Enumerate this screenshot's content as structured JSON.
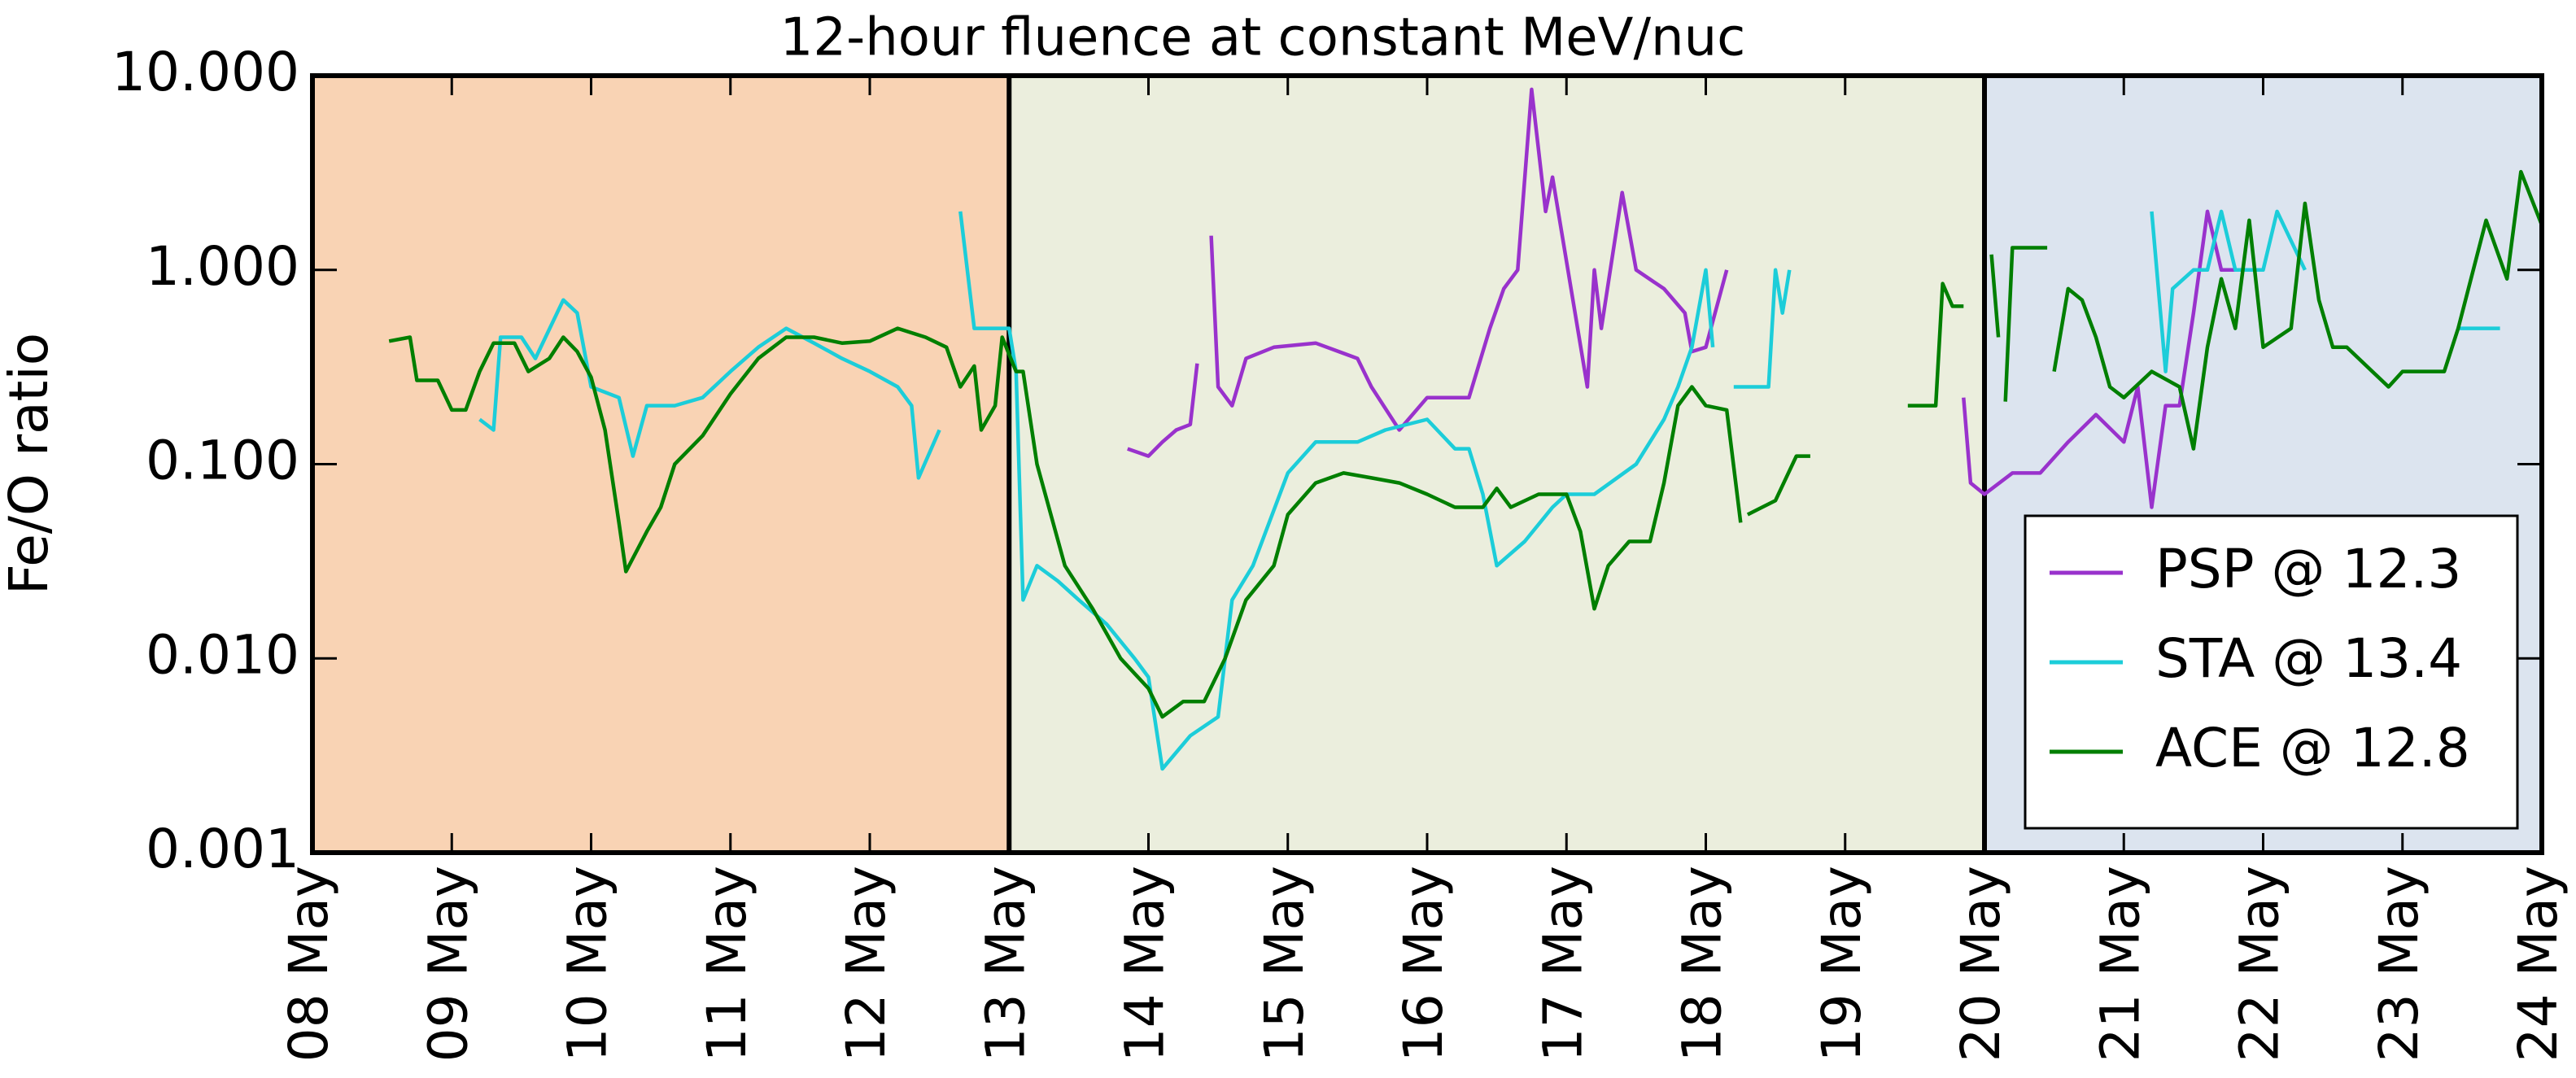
{
  "chart_data": {
    "type": "line",
    "title": "12-hour fluence at constant MeV/nuc",
    "y_label": "Fe/O ratio",
    "ylog": true,
    "ylim": [
      0.001,
      10
    ],
    "yticks": [
      {
        "value": 0.001,
        "label": "0.001"
      },
      {
        "value": 0.01,
        "label": "0.010"
      },
      {
        "value": 0.1,
        "label": "0.100"
      },
      {
        "value": 1,
        "label": "1.000"
      },
      {
        "value": 10,
        "label": "10.000"
      }
    ],
    "xlim": [
      8,
      24
    ],
    "xticks": [
      {
        "value": 8,
        "label": "08 May"
      },
      {
        "value": 9,
        "label": "09 May"
      },
      {
        "value": 10,
        "label": "10 May"
      },
      {
        "value": 11,
        "label": "11 May"
      },
      {
        "value": 12,
        "label": "12 May"
      },
      {
        "value": 13,
        "label": "13 May"
      },
      {
        "value": 14,
        "label": "14 May"
      },
      {
        "value": 15,
        "label": "15 May"
      },
      {
        "value": 16,
        "label": "16 May"
      },
      {
        "value": 17,
        "label": "17 May"
      },
      {
        "value": 18,
        "label": "18 May"
      },
      {
        "value": 19,
        "label": "19 May"
      },
      {
        "value": 20,
        "label": "20 May"
      },
      {
        "value": 21,
        "label": "21 May"
      },
      {
        "value": 22,
        "label": "22 May"
      },
      {
        "value": 23,
        "label": "23 May"
      },
      {
        "value": 24,
        "label": "24 May"
      }
    ],
    "regions": [
      {
        "start": 8,
        "end": 13,
        "color": "#f9d3b4"
      },
      {
        "start": 13,
        "end": 20,
        "color": "#ebeedd"
      },
      {
        "start": 20,
        "end": 24,
        "color": "#dce4ef"
      }
    ],
    "legend": "lower right",
    "series": [
      {
        "name": "PSP @ 12.3",
        "color": "#9932cc",
        "x": [
          13.85,
          14.0,
          14.1,
          14.2,
          14.3,
          14.35,
          14.4,
          14.45,
          14.5,
          14.6,
          14.7,
          14.9,
          15.2,
          15.5,
          15.6,
          15.8,
          16.0,
          16.3,
          16.45,
          16.55,
          16.65,
          16.75,
          16.85,
          16.9,
          17.15,
          17.2,
          17.25,
          17.4,
          17.5,
          17.7,
          17.85,
          17.9,
          18.0,
          18.15,
          19.0,
          19.85,
          19.9,
          20.0,
          20.2,
          20.4,
          20.6,
          20.8,
          21.0,
          21.1,
          21.2,
          21.3,
          21.4,
          21.5,
          21.6,
          21.7,
          21.8,
          22.0
        ],
        "values": [
          0.12,
          0.11,
          0.13,
          0.15,
          0.16,
          0.33,
          null,
          1.5,
          0.25,
          0.2,
          0.35,
          0.4,
          0.42,
          0.35,
          0.25,
          0.15,
          0.22,
          0.22,
          0.5,
          0.8,
          1.0,
          8.5,
          2.0,
          3.0,
          0.25,
          1.0,
          0.5,
          2.5,
          1.0,
          0.8,
          0.6,
          0.38,
          0.4,
          1.0,
          null,
          0.22,
          0.08,
          0.07,
          0.09,
          0.09,
          0.13,
          0.18,
          0.13,
          0.25,
          0.06,
          0.2,
          0.2,
          0.6,
          2.0,
          1.0,
          1.0,
          1.0
        ]
      },
      {
        "name": "STA @ 13.4",
        "color": "#1ccdd9",
        "x": [
          9.2,
          9.3,
          9.35,
          9.5,
          9.6,
          9.8,
          9.9,
          10.0,
          10.2,
          10.3,
          10.4,
          10.6,
          10.8,
          11.0,
          11.2,
          11.4,
          11.6,
          11.8,
          12.0,
          12.2,
          12.3,
          12.35,
          12.5,
          12.6,
          12.65,
          12.75,
          13.0,
          13.05,
          13.1,
          13.2,
          13.35,
          13.5,
          13.7,
          13.9,
          14.0,
          14.1,
          14.3,
          14.5,
          14.6,
          14.75,
          15.0,
          15.2,
          15.5,
          15.7,
          16.0,
          16.2,
          16.3,
          16.4,
          16.5,
          16.7,
          16.9,
          17.0,
          17.2,
          17.5,
          17.7,
          17.8,
          17.9,
          18.0,
          18.05,
          18.1,
          18.2,
          18.45,
          18.5,
          18.55,
          18.6,
          19.5,
          21.2,
          21.3,
          21.35,
          21.5,
          21.6,
          21.7,
          21.8,
          22.0,
          22.1,
          22.3,
          23.0,
          23.4,
          23.7
        ],
        "values": [
          0.17,
          0.15,
          0.45,
          0.45,
          0.35,
          0.7,
          0.6,
          0.25,
          0.22,
          0.11,
          0.2,
          0.2,
          0.22,
          0.3,
          0.4,
          0.5,
          0.42,
          0.35,
          0.3,
          0.25,
          0.2,
          0.085,
          0.15,
          null,
          2.0,
          0.5,
          0.5,
          0.3,
          0.02,
          0.03,
          0.025,
          0.02,
          0.015,
          0.01,
          0.008,
          0.0027,
          0.004,
          0.005,
          0.02,
          0.03,
          0.09,
          0.13,
          0.13,
          0.15,
          0.17,
          0.12,
          0.12,
          0.07,
          0.03,
          0.04,
          0.06,
          0.07,
          0.07,
          0.1,
          0.17,
          0.25,
          0.4,
          1.0,
          0.4,
          null,
          0.25,
          0.25,
          1.0,
          0.6,
          1.0,
          null,
          2.0,
          0.3,
          0.8,
          1.0,
          1.0,
          2.0,
          1.0,
          1.0,
          2.0,
          1.0,
          null,
          0.5,
          0.5
        ]
      },
      {
        "name": "ACE @ 12.8",
        "color": "#007f00",
        "x": [
          8.55,
          8.7,
          8.75,
          8.9,
          9.0,
          9.1,
          9.2,
          9.3,
          9.45,
          9.55,
          9.7,
          9.8,
          9.9,
          10.0,
          10.1,
          10.2,
          10.25,
          10.4,
          10.5,
          10.6,
          10.8,
          11.0,
          11.2,
          11.4,
          11.6,
          11.8,
          12.0,
          12.2,
          12.4,
          12.55,
          12.65,
          12.75,
          12.8,
          12.9,
          12.95,
          13.05,
          13.1,
          13.2,
          13.4,
          13.6,
          13.8,
          14.0,
          14.1,
          14.25,
          14.4,
          14.55,
          14.7,
          14.9,
          15.0,
          15.2,
          15.4,
          15.6,
          15.8,
          16.0,
          16.2,
          16.4,
          16.5,
          16.6,
          16.8,
          17.0,
          17.1,
          17.2,
          17.3,
          17.45,
          17.6,
          17.7,
          17.8,
          17.9,
          18.0,
          18.15,
          18.25,
          18.28,
          18.3,
          18.5,
          18.65,
          18.75,
          19.1,
          19.45,
          19.65,
          19.7,
          19.77,
          19.85,
          19.95,
          20.05,
          20.1,
          20.13,
          20.15,
          20.2,
          20.45,
          20.47,
          20.5,
          20.6,
          20.7,
          20.8,
          20.9,
          21.0,
          21.2,
          21.4,
          21.5,
          21.6,
          21.7,
          21.8,
          21.9,
          22.0,
          22.2,
          22.3,
          22.4,
          22.5,
          22.6,
          22.9,
          23.0,
          23.3,
          23.4,
          23.6,
          23.75,
          23.85,
          24.0
        ],
        "values": [
          0.43,
          0.45,
          0.27,
          0.27,
          0.19,
          0.19,
          0.3,
          0.42,
          0.42,
          0.3,
          0.35,
          0.45,
          0.38,
          0.28,
          0.15,
          0.05,
          0.028,
          0.045,
          0.06,
          0.1,
          0.14,
          0.23,
          0.35,
          0.45,
          0.45,
          0.42,
          0.43,
          0.5,
          0.45,
          0.4,
          0.25,
          0.32,
          0.15,
          0.2,
          0.45,
          0.3,
          0.3,
          0.1,
          0.03,
          0.018,
          0.01,
          0.007,
          0.005,
          0.006,
          0.006,
          0.01,
          0.02,
          0.03,
          0.055,
          0.08,
          0.09,
          0.085,
          0.08,
          0.07,
          0.06,
          0.06,
          0.075,
          0.06,
          0.07,
          0.07,
          0.045,
          0.018,
          0.03,
          0.04,
          0.04,
          0.08,
          0.2,
          0.25,
          0.2,
          0.19,
          0.05,
          null,
          0.055,
          0.065,
          0.11,
          0.11,
          null,
          0.2,
          0.2,
          0.85,
          0.65,
          0.65,
          null,
          1.2,
          0.45,
          null,
          0.21,
          1.3,
          1.3,
          null,
          0.3,
          0.8,
          0.7,
          0.45,
          0.25,
          0.22,
          0.3,
          0.25,
          0.12,
          0.4,
          0.9,
          0.5,
          1.8,
          0.4,
          0.5,
          2.2,
          0.7,
          0.4,
          0.4,
          0.25,
          0.3,
          0.3,
          0.5,
          1.8,
          0.9,
          3.2,
          1.7
        ]
      }
    ]
  }
}
